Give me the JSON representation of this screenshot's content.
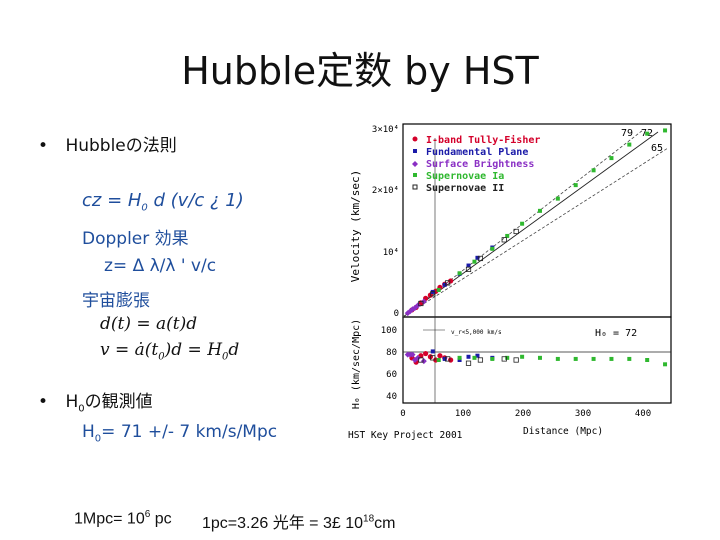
{
  "slide": {
    "title": "Hubble定数 by HST",
    "bullet1": {
      "marker": "•",
      "label": "Hubbleの法則"
    },
    "cz_formula": {
      "lhs": "cz = H",
      "sub": "0",
      "rest": " d  (v/c ¿ 1)"
    },
    "doppler": "Doppler 効果",
    "redshift_formula": "z= Δ λ/λ ' v/c",
    "expansion": "宇宙膨張",
    "eq1": "d(t) = a(t)d",
    "eq2_left": "v = ȧ(t",
    "eq2_sub": "0",
    "eq2_mid": ")d = H",
    "eq2_sub2": "0",
    "eq2_right": "d",
    "bullet2": {
      "marker": "•",
      "label_pre": "H",
      "label_sub": "0",
      "label_post": "の観測値"
    },
    "h0_value": {
      "pre": "H",
      "sub": "0",
      "post": "= 71 +/- 7 km/s/Mpc"
    },
    "units1": {
      "pre": "1Mpc= 10",
      "sup": "6",
      "post": " pc"
    },
    "units2": {
      "pre": "1pc=3.26 光年 = 3£ 10",
      "sup": "18",
      "post": "cm"
    }
  },
  "figure": {
    "legend": [
      {
        "label": "I-band Tully-Fisher",
        "color": "#d4002a"
      },
      {
        "label": "Fundamental Plane",
        "color": "#1a1aa8"
      },
      {
        "label": "Surface Brightness",
        "color": "#8a2fc4"
      },
      {
        "label": "Supernovae Ia",
        "color": "#2fb82f"
      },
      {
        "label": "Supernovae II",
        "color": "#222222"
      }
    ],
    "fit_labels": [
      "79",
      "72",
      "65"
    ],
    "h0_label": "H₀ = 72",
    "annot": "v_r<5,000 km/s",
    "caption": "HST Key Project 2001",
    "xlabel": "Distance (Mpc)",
    "ylabel_top": "Velocity (km/sec)",
    "ylabel_bottom": "H₀ (km/sec/Mpc)",
    "yticks_top": [
      "3×10⁴",
      "2×10⁴",
      "10⁴",
      "0"
    ],
    "yticks_bottom": [
      "100",
      "80",
      "60",
      "40"
    ],
    "xticks": [
      "0",
      "100",
      "200",
      "300",
      "400"
    ]
  },
  "chart_data": [
    {
      "type": "scatter",
      "title": "",
      "xlabel": "Distance (Mpc)",
      "ylabel": "Velocity (km/sec)",
      "xlim": [
        0,
        450
      ],
      "ylim": [
        0,
        30000
      ],
      "grid": false,
      "legend_position": "top-left",
      "fit_lines": [
        {
          "label": "79"
        },
        {
          "label": "72"
        },
        {
          "label": "65"
        }
      ],
      "series": [
        {
          "name": "I-band Tully-Fisher",
          "color": "#d4002a",
          "x": [
            15,
            22,
            30,
            38,
            46,
            55,
            62,
            70,
            80
          ],
          "y": [
            1100,
            1500,
            2200,
            2900,
            3400,
            4000,
            4600,
            5100,
            5600
          ]
        },
        {
          "name": "Fundamental Plane",
          "color": "#1a1aa8",
          "x": [
            50,
            70,
            95,
            110,
            125,
            150
          ],
          "y": [
            3900,
            5000,
            6700,
            8000,
            9200,
            10800
          ]
        },
        {
          "name": "Surface Brightness",
          "color": "#8a2fc4",
          "x": [
            8,
            12,
            16,
            20,
            25,
            35
          ],
          "y": [
            600,
            900,
            1200,
            1400,
            1800,
            2400
          ]
        },
        {
          "name": "Supernovae Ia",
          "color": "#2fb82f",
          "x": [
            60,
            95,
            120,
            150,
            175,
            200,
            230,
            260,
            290,
            320,
            350,
            380,
            410,
            440
          ],
          "y": [
            4200,
            6800,
            8600,
            10600,
            12600,
            14500,
            16500,
            18400,
            20500,
            22800,
            24700,
            26800,
            28500,
            29000
          ]
        },
        {
          "name": "Supernovae II",
          "color": "#222222",
          "x": [
            30,
            50,
            75,
            110,
            130,
            170,
            190
          ],
          "y": [
            2100,
            3600,
            5300,
            7400,
            9100,
            12000,
            13300
          ]
        }
      ]
    },
    {
      "type": "scatter",
      "title": "",
      "xlabel": "Distance (Mpc)",
      "ylabel": "H₀ (km/sec/Mpc)",
      "xlim": [
        0,
        450
      ],
      "ylim": [
        30,
        110
      ],
      "grid": false,
      "reference_line": 72,
      "series": [
        {
          "name": "I-band Tully-Fisher",
          "color": "#d4002a",
          "x": [
            15,
            22,
            30,
            38,
            46,
            55,
            62,
            70,
            80
          ],
          "y": [
            72,
            68,
            74,
            76,
            73,
            70,
            74,
            72,
            70
          ]
        },
        {
          "name": "Fundamental Plane",
          "color": "#1a1aa8",
          "x": [
            50,
            70,
            95,
            110,
            125,
            150
          ],
          "y": [
            78,
            71,
            70,
            73,
            74,
            72
          ]
        },
        {
          "name": "Surface Brightness",
          "color": "#8a2fc4",
          "x": [
            8,
            12,
            16,
            20,
            25,
            35
          ],
          "y": [
            75,
            75,
            75,
            70,
            72,
            69
          ]
        },
        {
          "name": "Supernovae Ia",
          "color": "#2fb82f",
          "x": [
            60,
            95,
            120,
            150,
            175,
            200,
            230,
            260,
            290,
            320,
            350,
            380,
            410,
            440
          ],
          "y": [
            70,
            72,
            72,
            71,
            72,
            73,
            72,
            71,
            71,
            71,
            71,
            71,
            70,
            66
          ]
        },
        {
          "name": "Supernovae II",
          "color": "#222222",
          "x": [
            30,
            50,
            75,
            110,
            130,
            170,
            190
          ],
          "y": [
            70,
            72,
            71,
            67,
            70,
            71,
            70
          ]
        }
      ]
    }
  ]
}
